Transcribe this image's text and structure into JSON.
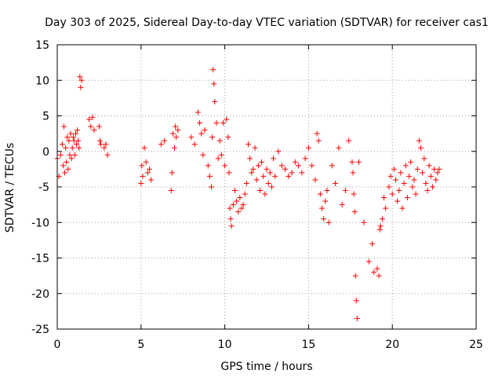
{
  "chart_data": {
    "type": "scatter",
    "title": "Day 303 of 2025, Sidereal Day-to-day VTEC variation (SDTVAR) for receiver cas1",
    "xlabel": "GPS time / hours",
    "ylabel": "SDTVAR / TECUs",
    "xlim": [
      0,
      25
    ],
    "ylim": [
      -25,
      15
    ],
    "xticks": [
      0,
      5,
      10,
      15,
      20,
      25
    ],
    "yticks": [
      15,
      10,
      5,
      0,
      -5,
      -10,
      -15,
      -20,
      -25
    ],
    "xtick_labels": [
      "0",
      "5",
      "10",
      "15",
      "20",
      "25"
    ],
    "ytick_labels": [
      "15",
      "10",
      "5",
      "0",
      "-5",
      "-10",
      "-15",
      "-20",
      "-25"
    ],
    "grid": true,
    "marker": "+",
    "color": "#ff0000",
    "series": [
      {
        "name": "SDTVAR",
        "x": [
          0.0,
          0.1,
          0.2,
          0.3,
          0.35,
          0.4,
          0.45,
          0.5,
          0.55,
          0.6,
          0.65,
          0.7,
          0.75,
          0.8,
          0.85,
          0.9,
          0.95,
          1.0,
          1.05,
          1.1,
          1.15,
          1.2,
          1.25,
          1.3,
          1.35,
          1.4,
          1.45,
          1.9,
          2.0,
          2.1,
          2.2,
          2.5,
          2.55,
          2.6,
          2.8,
          2.9,
          3.0,
          5.0,
          5.05,
          5.1,
          5.2,
          5.3,
          5.4,
          5.5,
          5.6,
          6.2,
          6.4,
          6.8,
          6.85,
          6.9,
          7.0,
          7.05,
          7.1,
          7.2,
          8.0,
          8.2,
          8.4,
          8.5,
          8.6,
          8.7,
          8.8,
          9.0,
          9.1,
          9.2,
          9.25,
          9.3,
          9.35,
          9.4,
          9.5,
          9.6,
          9.7,
          9.8,
          9.9,
          10.0,
          10.1,
          10.2,
          10.25,
          10.3,
          10.35,
          10.4,
          10.5,
          10.6,
          10.7,
          10.8,
          10.9,
          11.0,
          11.1,
          11.2,
          11.3,
          11.4,
          11.5,
          11.6,
          11.7,
          11.8,
          11.9,
          12.0,
          12.1,
          12.2,
          12.3,
          12.4,
          12.5,
          12.6,
          12.7,
          12.8,
          12.9,
          13.0,
          13.2,
          13.4,
          13.6,
          13.8,
          14.0,
          14.2,
          14.4,
          14.6,
          14.8,
          15.0,
          15.2,
          15.4,
          15.5,
          15.6,
          15.7,
          15.8,
          15.9,
          16.0,
          16.1,
          16.2,
          16.4,
          16.6,
          16.8,
          17.0,
          17.2,
          17.4,
          17.6,
          17.65,
          17.7,
          17.75,
          17.8,
          17.85,
          17.9,
          18.0,
          18.3,
          18.6,
          18.8,
          18.9,
          19.1,
          19.2,
          19.25,
          19.3,
          19.4,
          19.5,
          19.6,
          19.8,
          19.9,
          20.0,
          20.1,
          20.2,
          20.3,
          20.4,
          20.5,
          20.6,
          20.7,
          20.8,
          20.9,
          21.0,
          21.1,
          21.2,
          21.3,
          21.4,
          21.5,
          21.6,
          21.7,
          21.8,
          21.9,
          22.0,
          22.1,
          22.2,
          22.3,
          22.4,
          22.5,
          22.6,
          22.7,
          22.8
        ],
        "y": [
          -1.0,
          -3.5,
          -0.5,
          1.0,
          -2.0,
          3.5,
          -3.0,
          0.5,
          -1.5,
          2.0,
          -2.5,
          1.5,
          -0.5,
          2.5,
          -1.0,
          0.5,
          2.0,
          1.5,
          -0.5,
          2.5,
          1.0,
          3.0,
          1.5,
          0.5,
          10.5,
          9.0,
          10.0,
          4.5,
          3.5,
          4.8,
          3.0,
          3.5,
          1.5,
          1.0,
          0.5,
          1.0,
          -0.5,
          -4.5,
          -2.0,
          -3.5,
          0.5,
          -1.5,
          -3.0,
          -2.5,
          -4.0,
          1.0,
          1.5,
          -5.5,
          -3.0,
          2.5,
          0.5,
          3.5,
          2.0,
          3.0,
          2.0,
          1.0,
          5.5,
          4.0,
          2.5,
          -0.5,
          3.0,
          -2.0,
          -3.5,
          -5.0,
          2.0,
          11.5,
          9.5,
          7.0,
          4.0,
          -1.0,
          1.5,
          -0.5,
          4.0,
          -2.0,
          4.5,
          2.0,
          -3.0,
          -8.0,
          -9.5,
          -10.5,
          -7.5,
          -5.5,
          -7.0,
          -8.5,
          -6.5,
          -8.0,
          -7.5,
          -6.0,
          -4.5,
          1.0,
          -1.0,
          -3.0,
          -2.5,
          0.5,
          -4.0,
          -2.0,
          -5.5,
          -1.5,
          -3.5,
          -6.0,
          -2.5,
          -4.5,
          -3.0,
          -5.0,
          -1.0,
          -3.5,
          0.0,
          -2.0,
          -2.5,
          -3.5,
          -3.0,
          -1.5,
          -2.0,
          -3.0,
          -1.0,
          0.5,
          -2.0,
          -4.0,
          2.5,
          1.5,
          -6.0,
          -8.0,
          -9.5,
          -7.0,
          -5.5,
          -10.0,
          -2.0,
          -4.5,
          0.5,
          -7.5,
          -5.5,
          1.5,
          -1.5,
          -3.0,
          -6.0,
          -8.5,
          -17.5,
          -21.0,
          -23.5,
          -1.5,
          -10.0,
          -15.5,
          -13.0,
          -17.0,
          -16.5,
          -17.5,
          -11.0,
          -10.5,
          -9.5,
          -6.5,
          -8.0,
          -5.0,
          -3.5,
          -6.0,
          -2.5,
          -4.0,
          -7.0,
          -5.5,
          -3.0,
          -8.0,
          -4.5,
          -2.0,
          -6.5,
          -3.5,
          -1.5,
          -5.0,
          -4.0,
          -6.0,
          -2.5,
          1.5,
          0.5,
          -3.0,
          -1.0,
          -4.5,
          -5.5,
          -2.0,
          -3.5,
          -5.0,
          -2.5,
          -4.0,
          -3.0,
          -2.5
        ]
      }
    ]
  }
}
